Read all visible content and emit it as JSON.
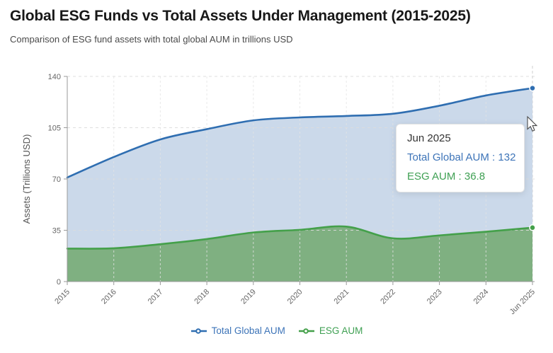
{
  "header": {
    "title": "Global ESG Funds vs Total Assets Under Management (2015-2025)",
    "subtitle": "Comparison of ESG fund assets with total global AUM in trillions USD"
  },
  "chart_data": {
    "type": "area",
    "title": "Global ESG Funds vs Total Assets Under Management (2015-2025)",
    "categories": [
      "2015",
      "2016",
      "2017",
      "2018",
      "2019",
      "2020",
      "2021",
      "2022",
      "2023",
      "2024",
      "Jun 2025"
    ],
    "series": [
      {
        "name": "Total Global AUM",
        "color": "#2f6eb1",
        "fill": "#cbd9ea",
        "values": [
          71,
          85,
          97,
          104,
          110,
          112,
          113,
          114.5,
          120,
          127,
          132
        ]
      },
      {
        "name": "ESG AUM",
        "color": "#44a04a",
        "fill": "#7fb081",
        "values": [
          22.5,
          22.7,
          25.5,
          29,
          33.5,
          35.3,
          37.5,
          29.5,
          31.5,
          34,
          36.8
        ]
      }
    ],
    "xlabel": "",
    "ylabel": "Assets (Trillions USD)",
    "ylim": [
      0,
      140
    ],
    "yticks": [
      0,
      35,
      70,
      105,
      140
    ],
    "grid": true,
    "legend_position": "bottom",
    "hovered_x": "Jun 2025",
    "axis_color": "#9a9a9a",
    "axis_text_color": "#666666"
  },
  "tooltip": {
    "title": "Jun 2025",
    "rows": [
      {
        "label": "Total Global AUM",
        "value": "132",
        "text": "Total Global AUM : 132",
        "color": "#3d74b8"
      },
      {
        "label": "ESG AUM",
        "value": "36.8",
        "text": "ESG AUM : 36.8",
        "color": "#3fa053"
      }
    ]
  }
}
